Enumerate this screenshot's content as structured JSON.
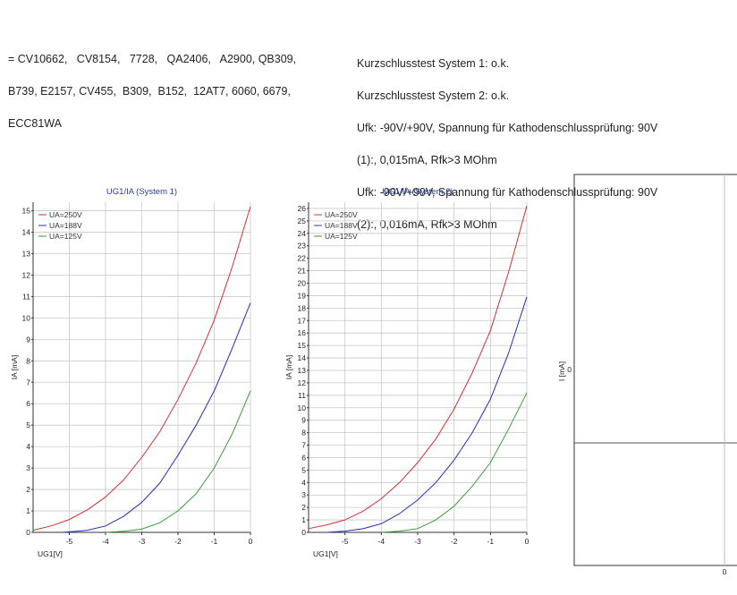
{
  "header": {
    "equivalents": [
      "= CV10662,   CV8154,   7728,   QA2406,   A2900, QB309,",
      "B739, E2157, CV455,  B309,  B152,  12AT7, 6060, 6679,",
      "ECC81WA"
    ],
    "tests": [
      "Kurzschlusstest System 1: o.k.",
      "Kurzschlusstest System 2: o.k.",
      "Ufk: -90V/+90V, Spannung für Kathodenschlussprüfung: 90V",
      "(1):, 0,015mA, Rfk>3 MOhm",
      "Ufk: -90V/+90V, Spannung für Kathodenschlussprüfung: 90V",
      "(2):, 0,016mA, Rfk>3 MOhm"
    ]
  },
  "colors": {
    "red": "#d23030",
    "blue": "#2430b4",
    "green": "#3a9a3a",
    "grid": "#c8c8c8",
    "title": "#2a3f9d"
  },
  "chart_data": [
    {
      "type": "line",
      "title": "UG1/IA (System 1)",
      "xlabel": "UG1[V]",
      "ylabel": "IA [mA]",
      "xlim": [
        -6,
        0
      ],
      "ylim": [
        0,
        15.4
      ],
      "xticks": [
        -5,
        -4,
        -3,
        -2,
        -1,
        0
      ],
      "xtick_labels": [
        "-5",
        "-4",
        "-3",
        "-2",
        "-1",
        "0"
      ],
      "yticks": [
        0,
        1,
        2,
        3,
        4,
        5,
        6,
        7,
        8,
        9,
        10,
        11,
        12,
        13,
        14,
        15
      ],
      "legend_position": "top-left",
      "series": [
        {
          "name": "UA=250V",
          "color": "#d23030",
          "x": [
            -6,
            -5.5,
            -5,
            -4.5,
            -4,
            -3.5,
            -3,
            -2.5,
            -2,
            -1.5,
            -1,
            -0.5,
            0
          ],
          "y": [
            0.1,
            0.3,
            0.6,
            1.05,
            1.65,
            2.45,
            3.5,
            4.7,
            6.2,
            7.9,
            9.9,
            12.4,
            15.2
          ]
        },
        {
          "name": "UA=188V",
          "color": "#2430b4",
          "x": [
            -5.2,
            -4.8,
            -4.5,
            -4,
            -3.5,
            -3,
            -2.5,
            -2,
            -1.5,
            -1,
            -0.5,
            0
          ],
          "y": [
            0,
            0.05,
            0.1,
            0.3,
            0.75,
            1.4,
            2.3,
            3.6,
            5.0,
            6.6,
            8.6,
            10.7
          ]
        },
        {
          "name": "UA=125V",
          "color": "#3a9a3a",
          "x": [
            -4,
            -3.5,
            -3,
            -2.5,
            -2,
            -1.5,
            -1,
            -0.5,
            0
          ],
          "y": [
            0,
            0.05,
            0.15,
            0.45,
            1.0,
            1.8,
            3.0,
            4.6,
            6.6
          ]
        }
      ]
    },
    {
      "type": "line",
      "title": "UG1/IA (System 2)",
      "xlabel": "UG1[V]",
      "ylabel": "IA [mA]",
      "xlim": [
        -6,
        0
      ],
      "ylim": [
        0,
        26.5
      ],
      "xticks": [
        -5,
        -4,
        -3,
        -2,
        -1,
        0
      ],
      "xtick_labels": [
        "-5",
        "-4",
        "-3",
        "-2",
        "-1",
        "0"
      ],
      "yticks": [
        0,
        1,
        2,
        3,
        4,
        5,
        6,
        7,
        8,
        9,
        10,
        11,
        12,
        13,
        14,
        15,
        16,
        17,
        18,
        19,
        20,
        21,
        22,
        23,
        24,
        25,
        26
      ],
      "legend_position": "top-left",
      "series": [
        {
          "name": "UA=250V",
          "color": "#d23030",
          "x": [
            -6,
            -5.5,
            -5,
            -4.5,
            -4,
            -3.5,
            -3,
            -2.5,
            -2,
            -1.5,
            -1,
            -0.5,
            0
          ],
          "y": [
            0.3,
            0.6,
            1.0,
            1.7,
            2.7,
            4.0,
            5.6,
            7.5,
            9.9,
            12.8,
            16.2,
            20.9,
            26.2
          ]
        },
        {
          "name": "UA=188V",
          "color": "#2430b4",
          "x": [
            -5.5,
            -5,
            -4.5,
            -4,
            -3.5,
            -3,
            -2.5,
            -2,
            -1.5,
            -1,
            -0.5,
            0
          ],
          "y": [
            0,
            0.1,
            0.3,
            0.7,
            1.5,
            2.6,
            4.0,
            5.8,
            8.0,
            10.7,
            14.4,
            18.9
          ]
        },
        {
          "name": "UA=125V",
          "color": "#3a9a3a",
          "x": [
            -4,
            -3.5,
            -3,
            -2.5,
            -2,
            -1.5,
            -1,
            -0.5,
            0
          ],
          "y": [
            0,
            0.1,
            0.3,
            1.0,
            2.1,
            3.7,
            5.6,
            8.3,
            11.2
          ]
        }
      ]
    },
    {
      "type": "line",
      "title": "",
      "xlabel": "",
      "ylabel": "I [mA]",
      "xtick_labels": [
        "0"
      ],
      "ytick_labels": [
        "0"
      ],
      "series": []
    }
  ]
}
